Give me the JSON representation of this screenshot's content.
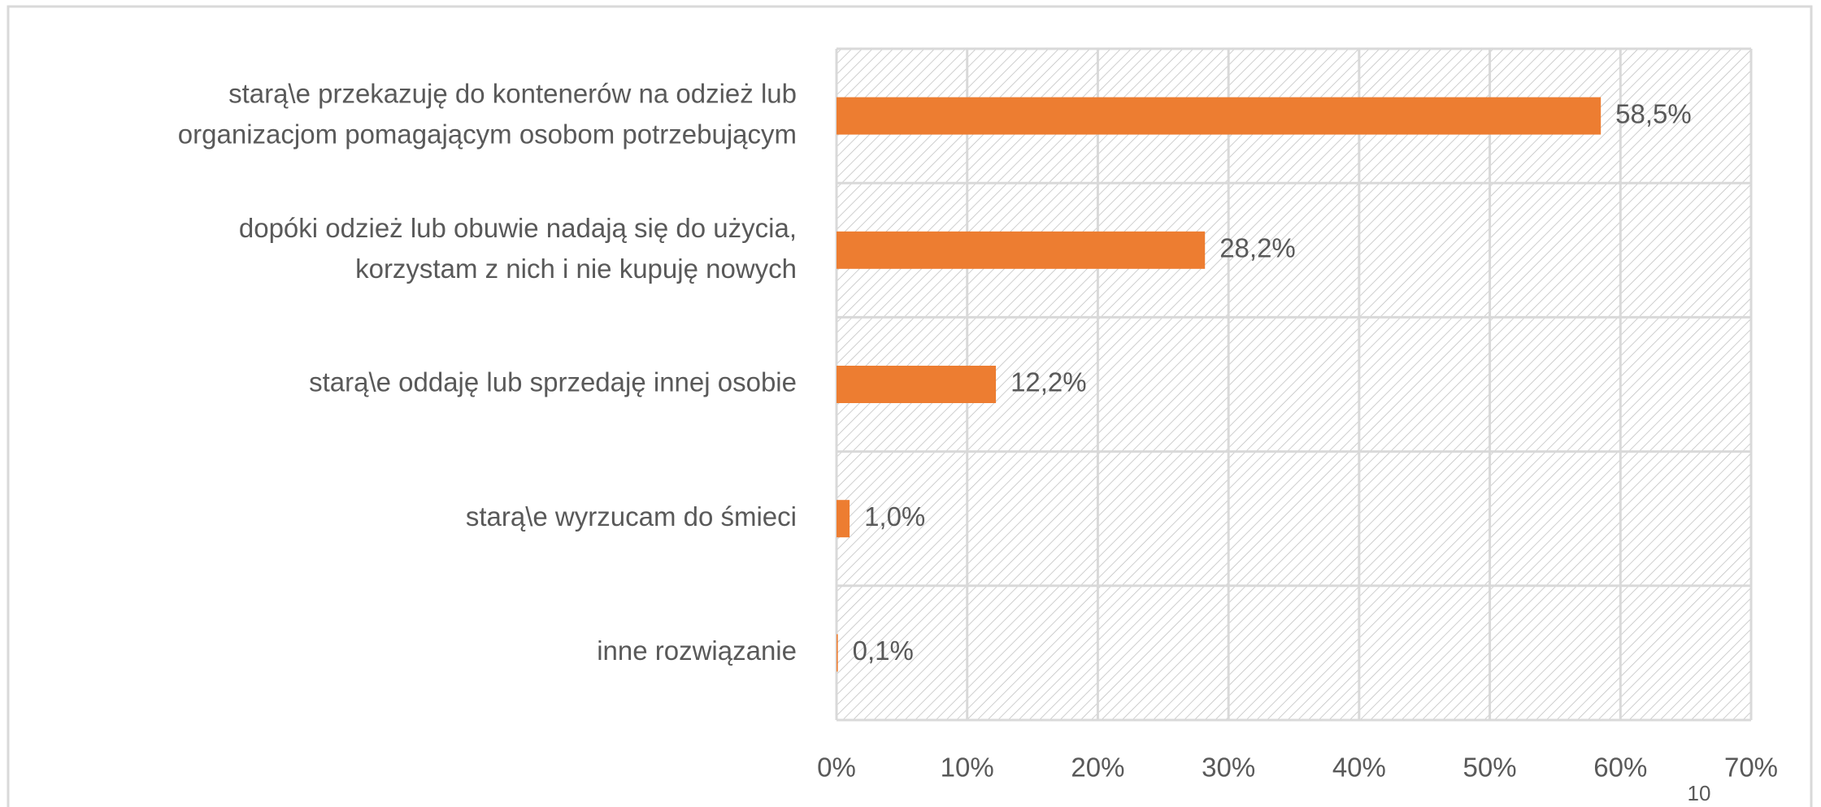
{
  "chart_data": {
    "type": "bar",
    "orientation": "horizontal",
    "categories": [
      "starą\\e przekazuję do kontenerów na odzież lub\norganizacjom pomagającym osobom potrzebującym",
      "dopóki odzież lub obuwie nadają się do użycia,\nkorzystam z nich i nie kupuję nowych",
      "starą\\e oddaję lub sprzedaję innej osobie",
      "starą\\e wyrzucam do śmieci",
      "inne rozwiązanie"
    ],
    "values": [
      58.5,
      28.2,
      12.2,
      1.0,
      0.1
    ],
    "value_labels": [
      "58,5%",
      "28,2%",
      "12,2%",
      "1,0%",
      "0,1%"
    ],
    "color": "#ed7d31",
    "xlim": [
      0,
      70
    ],
    "xticks": [
      {
        "value": 0,
        "label": "0%"
      },
      {
        "value": 10,
        "label": "10%"
      },
      {
        "value": 20,
        "label": "20%"
      },
      {
        "value": 30,
        "label": "30%"
      },
      {
        "value": 40,
        "label": "40%"
      },
      {
        "value": 50,
        "label": "50%"
      },
      {
        "value": 60,
        "label": "60%"
      },
      {
        "value": 70,
        "label": "70%"
      }
    ],
    "grid": true
  },
  "page_number": "10"
}
